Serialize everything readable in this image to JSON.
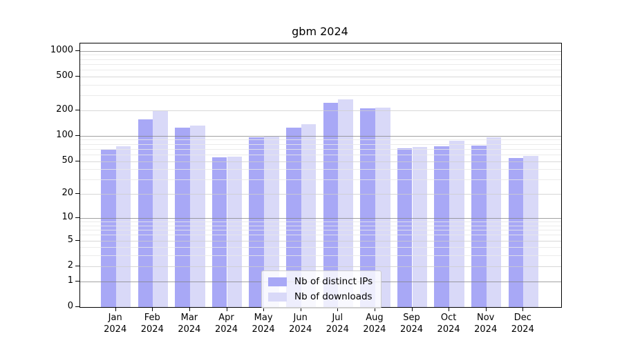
{
  "chart_data": {
    "type": "bar",
    "title": "gbm 2024",
    "months": [
      "Jan",
      "Feb",
      "Mar",
      "Apr",
      "May",
      "Jun",
      "Jul",
      "Aug",
      "Sep",
      "Oct",
      "Nov",
      "Dec"
    ],
    "year": "2024",
    "categories": [
      "Jan 2024",
      "Feb 2024",
      "Mar 2024",
      "Apr 2024",
      "May 2024",
      "Jun 2024",
      "Jul 2024",
      "Aug 2024",
      "Sep 2024",
      "Oct 2024",
      "Nov 2024",
      "Dec 2024"
    ],
    "series": [
      {
        "name": "Nb of distinct IPs",
        "color": "#a8a8f6",
        "values": [
          68,
          156,
          125,
          56,
          97,
          124,
          247,
          211,
          71,
          75,
          77,
          55
        ]
      },
      {
        "name": "Nb of downloads",
        "color": "#d9d9f8",
        "values": [
          75,
          195,
          131,
          57,
          98,
          136,
          271,
          217,
          74,
          88,
          96,
          58
        ]
      }
    ],
    "xlabel": "",
    "ylabel": "",
    "yscale": "log10(value+1)",
    "y_ticks": [
      0,
      1,
      2,
      5,
      10,
      20,
      50,
      100,
      200,
      500,
      1000
    ],
    "y_minor_multiples": [
      3,
      4,
      6,
      7,
      8,
      9
    ],
    "ylim": [
      0,
      1200
    ],
    "grid": true,
    "legend_position": "lower-center-inside"
  },
  "colors": {
    "background": "#ffffff",
    "spine": "#000000",
    "grid_decade": "rgba(130,130,130,0.75)",
    "grid_labeled": "rgba(205,205,205,0.8)",
    "grid_minor": "rgba(232,232,232,0.85)",
    "legend_border": "#cccccc"
  }
}
